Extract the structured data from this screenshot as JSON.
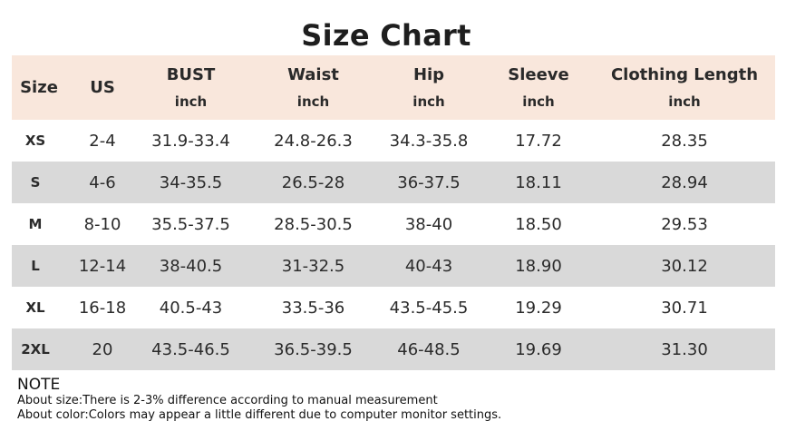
{
  "title": "Size Chart",
  "header": [
    {
      "main": "Size",
      "unit": ""
    },
    {
      "main": "US",
      "unit": ""
    },
    {
      "main": "BUST",
      "unit": "inch"
    },
    {
      "main": "Waist",
      "unit": "inch"
    },
    {
      "main": "Hip",
      "unit": "inch"
    },
    {
      "main": "Sleeve",
      "unit": "inch"
    },
    {
      "main": "Clothing Length",
      "unit": "inch"
    }
  ],
  "rows": [
    [
      "XS",
      "2-4",
      "31.9-33.4",
      "24.8-26.3",
      "34.3-35.8",
      "17.72",
      "28.35"
    ],
    [
      "S",
      "4-6",
      "34-35.5",
      "26.5-28",
      "36-37.5",
      "18.11",
      "28.94"
    ],
    [
      "M",
      "8-10",
      "35.5-37.5",
      "28.5-30.5",
      "38-40",
      "18.50",
      "29.53"
    ],
    [
      "L",
      "12-14",
      "38-40.5",
      "31-32.5",
      "40-43",
      "18.90",
      "30.12"
    ],
    [
      "XL",
      "16-18",
      "40.5-43",
      "33.5-36",
      "43.5-45.5",
      "19.29",
      "30.71"
    ],
    [
      "2XL",
      "20",
      "43.5-46.5",
      "36.5-39.5",
      "46-48.5",
      "19.69",
      "31.30"
    ]
  ],
  "note": {
    "title": "NOTE",
    "lines": [
      "About size:There is 2-3% difference according to manual measurement",
      "About color:Colors may appear a little different due to computer monitor settings."
    ]
  },
  "colors": {
    "header_bg": "#f9e7dc",
    "shaded_row_bg": "#d9d9d9",
    "text": "#222222"
  }
}
